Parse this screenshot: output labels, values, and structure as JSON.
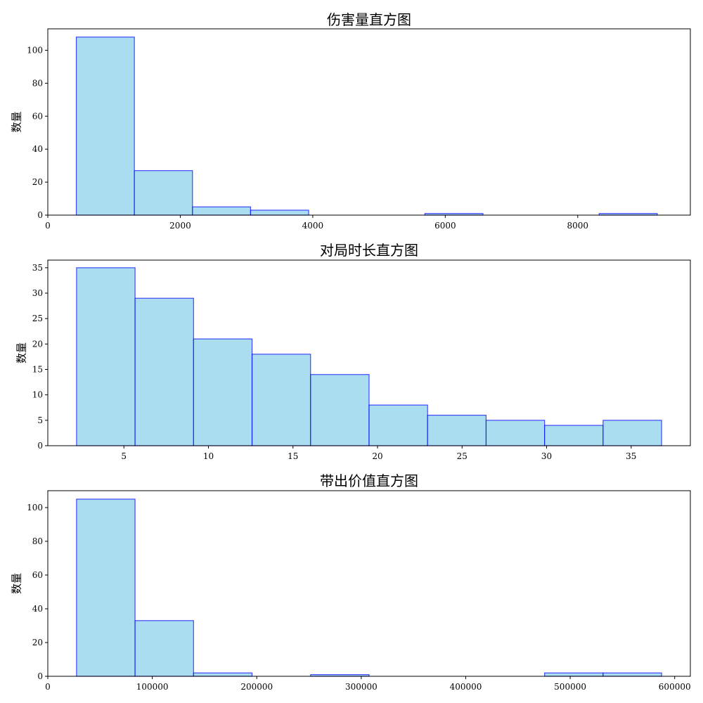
{
  "colors": {
    "bar_fill": "#87CEEB",
    "bar_fill_opacity": 0.7,
    "bar_edge": "#0000FF",
    "bar_edge_opacity": 0.7
  },
  "chart_data": [
    {
      "type": "bar",
      "title": "伤害量直方图",
      "xlabel": "",
      "ylabel": "数量",
      "xlim": [
        0,
        9700
      ],
      "ylim": [
        0,
        113
      ],
      "xticks": [
        0,
        2000,
        4000,
        6000,
        8000
      ],
      "xtick_labels": [
        "0",
        "2000",
        "4000",
        "6000",
        "8000"
      ],
      "yticks": [
        0,
        20,
        40,
        60,
        80,
        100
      ],
      "ytick_labels": [
        "0",
        "20",
        "40",
        "60",
        "80",
        "100"
      ],
      "bin_edges": [
        430,
        1307,
        2184,
        3061,
        3938,
        4815,
        5692,
        6569,
        7446,
        8323,
        9200
      ],
      "values": [
        108,
        27,
        5,
        3,
        0,
        0,
        1,
        0,
        0,
        1
      ]
    },
    {
      "type": "bar",
      "title": "对局时长直方图",
      "xlabel": "",
      "ylabel": "数量",
      "xlim": [
        0.5,
        38.5
      ],
      "ylim": [
        0,
        36.5
      ],
      "xticks": [
        5,
        10,
        15,
        20,
        25,
        30,
        35
      ],
      "xtick_labels": [
        "5",
        "10",
        "15",
        "20",
        "25",
        "30",
        "35"
      ],
      "yticks": [
        0,
        5,
        10,
        15,
        20,
        25,
        30,
        35
      ],
      "ytick_labels": [
        "0",
        "5",
        "10",
        "15",
        "20",
        "25",
        "30",
        "35"
      ],
      "bin_edges": [
        2.2,
        5.66,
        9.12,
        12.58,
        16.04,
        19.5,
        22.96,
        26.42,
        29.88,
        33.34,
        36.8
      ],
      "values": [
        35,
        29,
        21,
        18,
        14,
        8,
        6,
        5,
        4,
        5
      ]
    },
    {
      "type": "bar",
      "title": "带出价值直方图",
      "xlabel": "",
      "ylabel": "数量",
      "xlim": [
        0,
        615000
      ],
      "ylim": [
        0,
        110
      ],
      "xticks": [
        0,
        100000,
        200000,
        300000,
        400000,
        500000,
        600000
      ],
      "xtick_labels": [
        "0",
        "100000",
        "200000",
        "300000",
        "400000",
        "500000",
        "600000"
      ],
      "yticks": [
        0,
        20,
        40,
        60,
        80,
        100
      ],
      "ytick_labels": [
        "0",
        "20",
        "40",
        "60",
        "80",
        "100"
      ],
      "bin_edges": [
        27500,
        83500,
        139500,
        195500,
        251500,
        307500,
        363500,
        419500,
        475500,
        531500,
        587500
      ],
      "values": [
        105,
        33,
        2,
        0,
        1,
        0,
        0,
        0,
        2,
        2
      ]
    }
  ]
}
